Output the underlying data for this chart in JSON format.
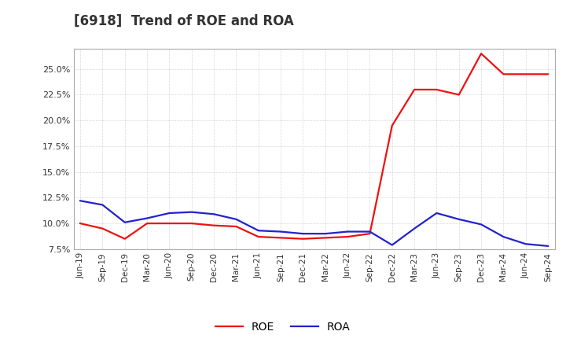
{
  "title": "[6918]  Trend of ROE and ROA",
  "title_fontsize": 12,
  "title_color": "#333333",
  "background_color": "#ffffff",
  "plot_bg_color": "#ffffff",
  "grid_color": "#999999",
  "x_labels": [
    "Jun-19",
    "Sep-19",
    "Dec-19",
    "Mar-20",
    "Jun-20",
    "Sep-20",
    "Dec-20",
    "Mar-21",
    "Jun-21",
    "Sep-21",
    "Dec-21",
    "Mar-22",
    "Jun-22",
    "Sep-22",
    "Dec-22",
    "Mar-23",
    "Jun-23",
    "Sep-23",
    "Dec-23",
    "Mar-24",
    "Jun-24",
    "Sep-24"
  ],
  "roe": [
    10.0,
    9.5,
    8.5,
    10.0,
    10.0,
    10.0,
    9.8,
    9.7,
    8.7,
    8.6,
    8.5,
    8.6,
    8.7,
    9.0,
    19.5,
    23.0,
    23.0,
    22.5,
    26.5,
    24.5,
    24.5,
    24.5
  ],
  "roa": [
    12.2,
    11.8,
    10.1,
    10.5,
    11.0,
    11.1,
    10.9,
    10.4,
    9.3,
    9.2,
    9.0,
    9.0,
    9.2,
    9.2,
    7.9,
    9.5,
    11.0,
    10.4,
    9.9,
    8.7,
    8.0,
    7.8
  ],
  "roe_color": "#ee1111",
  "roa_color": "#2222cc",
  "line_width": 1.6,
  "ylim_min": 7.5,
  "ylim_max": 27.0,
  "yticks": [
    7.5,
    10.0,
    12.5,
    15.0,
    17.5,
    20.0,
    22.5,
    25.0
  ],
  "legend_roe": "ROE",
  "legend_roa": "ROA"
}
